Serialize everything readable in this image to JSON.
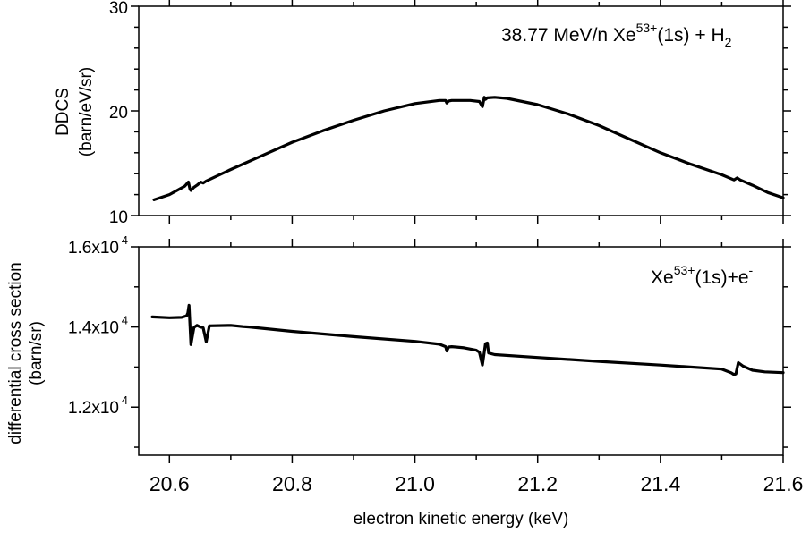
{
  "chart_data": [
    {
      "type": "line",
      "panel": "top",
      "annotation": {
        "text": "38.77 MeV/n Xe",
        "sup": "53+",
        "mid": "(1s) + H",
        "sub": "2"
      },
      "ylabel_line1": "DDCS",
      "ylabel_line2": "(barn/eV/sr)",
      "ylim": [
        10,
        30
      ],
      "yticks": [
        10,
        20,
        30
      ],
      "yticklabels": [
        "10",
        "20",
        "30"
      ],
      "xlim": [
        20.55,
        21.6
      ],
      "series": [
        {
          "x": [
            20.575,
            20.6,
            20.625,
            20.631,
            20.6335,
            20.635,
            20.64,
            20.645,
            20.651,
            20.655,
            20.66,
            20.7,
            20.75,
            20.8,
            20.85,
            20.9,
            20.95,
            21.0,
            21.04,
            21.05,
            21.052,
            21.055,
            21.06,
            21.09,
            21.105,
            21.11,
            21.113,
            21.115,
            21.118,
            21.13,
            21.15,
            21.2,
            21.25,
            21.3,
            21.35,
            21.4,
            21.45,
            21.5,
            21.52,
            21.525,
            21.53,
            21.55,
            21.575,
            21.6
          ],
          "y": [
            11.5,
            12.0,
            12.8,
            13.2,
            12.5,
            12.4,
            12.7,
            12.9,
            13.2,
            13.1,
            13.3,
            14.4,
            15.7,
            17.0,
            18.1,
            19.1,
            20.0,
            20.7,
            21.0,
            21.0,
            20.75,
            20.95,
            21.0,
            21.0,
            20.9,
            20.4,
            21.3,
            21.1,
            21.25,
            21.3,
            21.2,
            20.6,
            19.7,
            18.6,
            17.3,
            16.0,
            14.9,
            13.9,
            13.4,
            13.6,
            13.4,
            12.9,
            12.2,
            11.7
          ]
        }
      ]
    },
    {
      "type": "line",
      "panel": "bottom",
      "annotation": {
        "text": "Xe",
        "sup": "53+",
        "mid": "(1s)+e",
        "sup2": "-"
      },
      "ylabel_line1": "differential cross section",
      "ylabel_line2": "(barn/sr)",
      "ylim": [
        10800,
        16000
      ],
      "yticks": [
        12000,
        14000,
        16000
      ],
      "yticklabels": [
        {
          "base": "1.2x10",
          "exp": "4"
        },
        {
          "base": "1.4x10",
          "exp": "4"
        },
        {
          "base": "1.6x10",
          "exp": "4"
        }
      ],
      "xlim": [
        20.55,
        21.6
      ],
      "xlabel": "electron kinetic energy (keV)",
      "xticks": [
        20.6,
        20.8,
        21.0,
        21.2,
        21.4,
        21.6
      ],
      "xticklabels": [
        "20.6",
        "20.8",
        "21.0",
        "21.2",
        "21.4",
        "21.6"
      ],
      "series": [
        {
          "x": [
            20.572,
            20.6,
            20.62,
            20.628,
            20.63,
            20.632,
            20.635,
            20.64,
            20.645,
            20.65,
            20.655,
            20.66,
            20.665,
            20.7,
            20.72,
            20.73,
            20.8,
            20.9,
            21.0,
            21.04,
            21.05,
            21.052,
            21.055,
            21.06,
            21.08,
            21.1,
            21.105,
            21.11,
            21.115,
            21.118,
            21.12,
            21.13,
            21.2,
            21.3,
            21.4,
            21.5,
            21.515,
            21.52,
            21.523,
            21.527,
            21.535,
            21.55,
            21.57,
            21.6
          ],
          "y": [
            14250,
            14230,
            14240,
            14280,
            14350,
            14540,
            13560,
            13990,
            14040,
            14000,
            13980,
            13630,
            14030,
            14040,
            14010,
            14000,
            13890,
            13760,
            13640,
            13570,
            13510,
            13400,
            13500,
            13510,
            13480,
            13420,
            13370,
            13050,
            13580,
            13600,
            13350,
            13310,
            13240,
            13140,
            13050,
            12950,
            12860,
            12810,
            12830,
            13110,
            13020,
            12920,
            12880,
            12860
          ]
        }
      ]
    }
  ]
}
